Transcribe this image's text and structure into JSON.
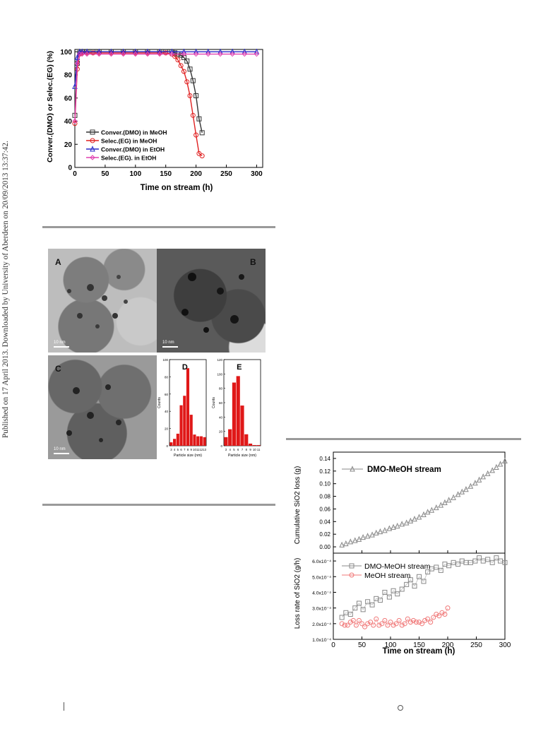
{
  "side_note": "Published on 17 April 2013. Downloaded by University of Aberdeen on 20/09/2013 13:37:42.",
  "chart_data": [
    {
      "type": "line",
      "xlabel": "Time on stream (h)",
      "ylabel": "Conver.(DMO) or Selec.(EG) (%)",
      "xlim": [
        0,
        310
      ],
      "ylim": [
        0,
        102
      ],
      "xticks": [
        "0",
        "50",
        "100",
        "150",
        "200",
        "250",
        "300"
      ],
      "yticks": [
        "0",
        "20",
        "40",
        "60",
        "80",
        "100"
      ],
      "legend": "bottom-left",
      "series": [
        {
          "name": "Conver.(DMO) in MeOH",
          "color": "#333333",
          "marker": "square",
          "x": [
            0,
            4,
            8,
            12,
            20,
            30,
            40,
            60,
            80,
            100,
            120,
            140,
            150,
            160,
            165,
            170,
            175,
            180,
            185,
            190,
            195,
            200,
            205,
            210
          ],
          "y": [
            45,
            90,
            99,
            100,
            100,
            100,
            100,
            100,
            100,
            100,
            100,
            100,
            100,
            100,
            99,
            98,
            97,
            95,
            92,
            85,
            75,
            62,
            42,
            30
          ]
        },
        {
          "name": "Selec.(EG) in MeOH",
          "color": "#e02020",
          "marker": "circle",
          "x": [
            0,
            4,
            8,
            12,
            20,
            30,
            40,
            60,
            80,
            100,
            120,
            140,
            150,
            160,
            165,
            170,
            175,
            180,
            185,
            190,
            195,
            200,
            205,
            210
          ],
          "y": [
            38,
            85,
            98,
            99,
            99,
            99,
            99,
            99,
            99,
            99,
            99,
            99,
            99,
            98,
            96,
            93,
            88,
            83,
            74,
            62,
            45,
            28,
            12,
            10
          ]
        },
        {
          "name": "Conver.(DMO) in EtOH",
          "color": "#2828c8",
          "marker": "triangle",
          "x": [
            0,
            4,
            8,
            12,
            20,
            40,
            60,
            80,
            100,
            120,
            140,
            160,
            180,
            200,
            220,
            240,
            260,
            280,
            300
          ],
          "y": [
            70,
            95,
            100,
            100,
            100,
            100,
            100,
            100,
            100,
            100,
            100,
            100,
            100,
            100,
            100,
            100,
            100,
            100,
            100
          ]
        },
        {
          "name": "Selec.(EG). in EtOH",
          "color": "#e040b0",
          "marker": "diamond",
          "x": [
            0,
            4,
            8,
            12,
            20,
            40,
            60,
            80,
            100,
            120,
            140,
            160,
            180,
            200,
            220,
            240,
            260,
            280,
            300
          ],
          "y": [
            40,
            90,
            98,
            98,
            98,
            98,
            98,
            98,
            98,
            98,
            98,
            98,
            98,
            98,
            98,
            98,
            98,
            98,
            98
          ]
        }
      ]
    },
    {
      "type": "bar",
      "panel": "D",
      "xlabel": "Particle size (nm)",
      "ylabel": "Counts",
      "categories": [
        "3",
        "4",
        "5",
        "6",
        "7",
        "8",
        "9",
        "10",
        "11",
        "12",
        "13"
      ],
      "values": [
        4,
        8,
        14,
        47,
        58,
        90,
        36,
        13,
        11,
        11,
        10
      ],
      "ylim": [
        0,
        100
      ],
      "yticks": [
        "0",
        "20",
        "40",
        "60",
        "80",
        "100"
      ]
    },
    {
      "type": "bar",
      "panel": "E",
      "xlabel": "Particle size (nm)",
      "ylabel": "Counts",
      "categories": [
        "3",
        "4",
        "5",
        "6",
        "7",
        "8",
        "9",
        "10",
        "11"
      ],
      "values": [
        12,
        23,
        88,
        97,
        56,
        16,
        3,
        1,
        1
      ],
      "ylim": [
        0,
        120
      ],
      "yticks": [
        "0",
        "20",
        "40",
        "60",
        "80",
        "100",
        "120"
      ]
    },
    {
      "type": "scatter",
      "ylabel": "Cumulative SiO2 loss (g)",
      "xlim": [
        0,
        300
      ],
      "ylim": [
        -0.01,
        0.15
      ],
      "yticks": [
        "0.00",
        "0.02",
        "0.04",
        "0.06",
        "0.08",
        "0.10",
        "0.12",
        "0.14"
      ],
      "legend": "top-left",
      "series": [
        {
          "name": "DMO-MeOH stream",
          "color": "#888888",
          "marker": "triangle",
          "x": [
            15,
            22,
            30,
            38,
            45,
            52,
            60,
            68,
            75,
            82,
            90,
            98,
            105,
            112,
            120,
            128,
            135,
            142,
            150,
            158,
            165,
            172,
            180,
            188,
            195,
            202,
            210,
            218,
            225,
            232,
            240,
            248,
            255,
            262,
            270,
            278,
            285,
            292,
            300
          ],
          "y": [
            0.003,
            0.005,
            0.008,
            0.01,
            0.012,
            0.015,
            0.017,
            0.019,
            0.022,
            0.024,
            0.026,
            0.029,
            0.031,
            0.033,
            0.036,
            0.038,
            0.041,
            0.044,
            0.047,
            0.051,
            0.055,
            0.058,
            0.062,
            0.066,
            0.07,
            0.074,
            0.078,
            0.083,
            0.087,
            0.091,
            0.096,
            0.101,
            0.106,
            0.111,
            0.116,
            0.121,
            0.126,
            0.131,
            0.136
          ]
        }
      ]
    },
    {
      "type": "scatter",
      "xlabel": "Time on stream (h)",
      "ylabel": "Loss rate of SiO2 (g/h)",
      "xlim": [
        0,
        300
      ],
      "ylim": [
        1.0,
        6.5
      ],
      "xticks": [
        "0",
        "50",
        "100",
        "150",
        "200",
        "250",
        "300"
      ],
      "yticks": [
        "1.0x10⁻⁴",
        "2.0x10⁻⁴",
        "3.0x10⁻⁴",
        "4.0x10⁻⁴",
        "5.0x10⁻⁴",
        "6.0x10⁻⁴"
      ],
      "y_unit_note": "values in units of 1e-4 g/h",
      "legend": "top-left",
      "series": [
        {
          "name": "DMO-MeOH stream",
          "color": "#888888",
          "marker": "square",
          "x": [
            15,
            22,
            30,
            38,
            45,
            52,
            60,
            68,
            75,
            82,
            90,
            98,
            105,
            112,
            120,
            128,
            135,
            142,
            150,
            158,
            165,
            172,
            180,
            188,
            195,
            202,
            210,
            218,
            225,
            232,
            240,
            248,
            255,
            262,
            270,
            278,
            285,
            292,
            300
          ],
          "y": [
            2.4,
            2.7,
            2.6,
            3.0,
            3.3,
            2.9,
            3.4,
            3.2,
            3.6,
            3.5,
            4.0,
            3.7,
            4.1,
            3.9,
            4.2,
            4.5,
            4.8,
            4.4,
            5.0,
            4.7,
            5.3,
            5.5,
            5.6,
            5.4,
            5.8,
            5.7,
            5.9,
            5.8,
            6.0,
            5.9,
            5.9,
            6.0,
            6.2,
            6.0,
            6.1,
            5.9,
            6.2,
            6.0,
            5.9
          ]
        },
        {
          "name": "MeOH stream",
          "color": "#f07878",
          "marker": "circle",
          "x": [
            15,
            20,
            25,
            30,
            35,
            40,
            45,
            50,
            55,
            60,
            65,
            70,
            75,
            80,
            85,
            90,
            95,
            100,
            105,
            110,
            115,
            120,
            125,
            130,
            135,
            140,
            145,
            150,
            155,
            160,
            165,
            170,
            175,
            180,
            185,
            190,
            195,
            200
          ],
          "y": [
            2.0,
            1.9,
            1.9,
            2.1,
            2.2,
            1.9,
            2.2,
            2.0,
            1.8,
            2.0,
            2.1,
            1.9,
            2.3,
            1.9,
            2.0,
            2.2,
            1.9,
            2.1,
            1.9,
            2.0,
            2.2,
            1.9,
            2.0,
            2.3,
            2.1,
            2.2,
            2.1,
            2.1,
            2.0,
            2.2,
            2.3,
            2.1,
            2.4,
            2.6,
            2.5,
            2.7,
            2.6,
            3.0
          ]
        }
      ]
    }
  ],
  "tem_panels": {
    "A": {
      "letter": "A",
      "scale": "10 nm"
    },
    "B": {
      "letter": "B",
      "scale": "10 nm"
    },
    "C": {
      "letter": "C",
      "scale": "10 nm"
    },
    "D": {
      "letter": "D"
    },
    "E": {
      "letter": "E"
    }
  },
  "colors": {
    "rule": "#9a9a9a",
    "bar": "#e01818"
  }
}
